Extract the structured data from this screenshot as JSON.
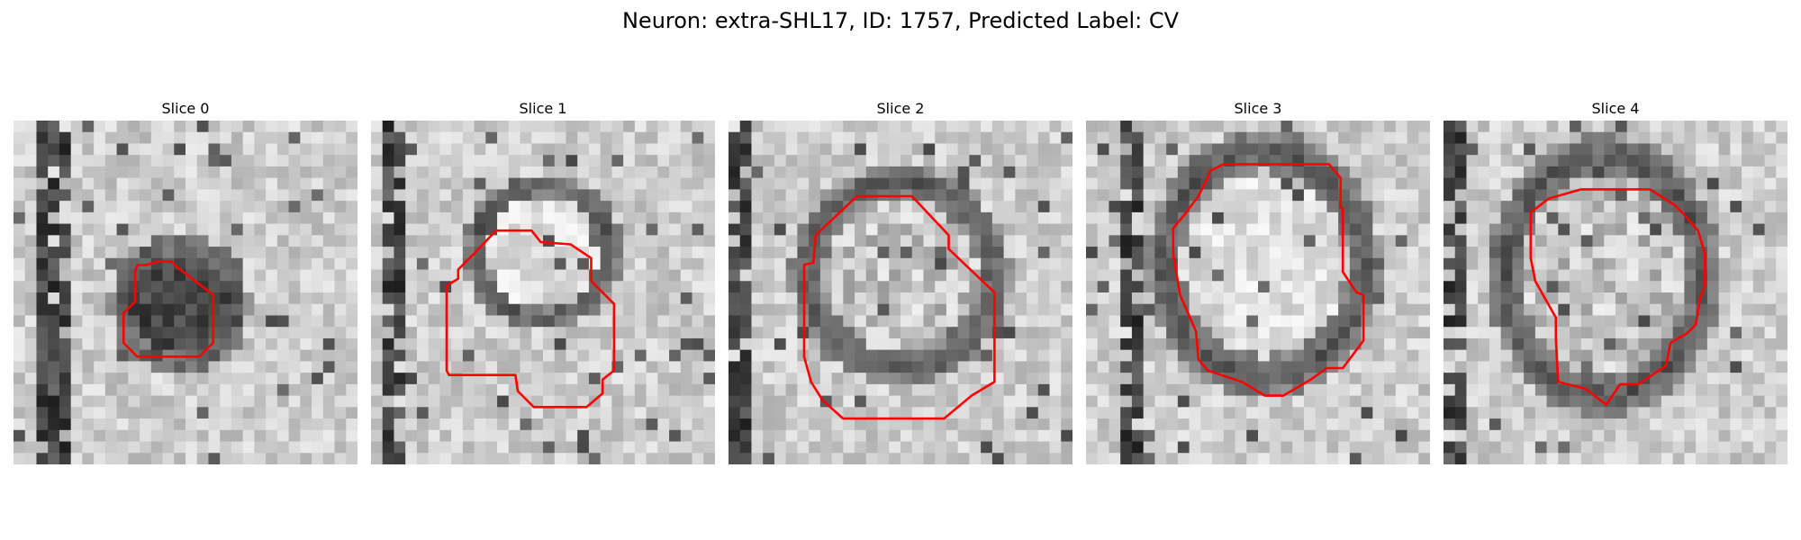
{
  "figure": {
    "title": "Neuron: extra-SHL17, ID: 1757, Predicted Label: CV",
    "contour_color": "#ff0000",
    "image_style": "grayscale microscopy tile with red segmentation contour",
    "panels": [
      {
        "title": "Slice 0",
        "pattern": "dark-blob"
      },
      {
        "title": "Slice 1",
        "pattern": "bright-cell-dark-ring"
      },
      {
        "title": "Slice 2",
        "pattern": "mottled-cell-ring"
      },
      {
        "title": "Slice 3",
        "pattern": "bright-cell-dark-ring"
      },
      {
        "title": "Slice 4",
        "pattern": "mottled-cell-ring"
      }
    ]
  }
}
